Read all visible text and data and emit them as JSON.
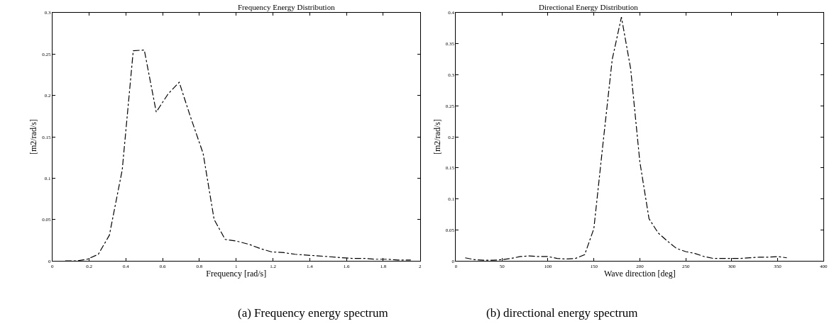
{
  "chart_data": [
    {
      "type": "line",
      "title": "Frequency Energy Distribution",
      "xlabel": "Frequency [rad/s]",
      "ylabel": "[m2/rad/s]",
      "annotations": [
        "(a) Frequency energy spectrum"
      ],
      "x": [
        0.07,
        0.13,
        0.19,
        0.25,
        0.31,
        0.38,
        0.44,
        0.5,
        0.565,
        0.63,
        0.69,
        0.75,
        0.82,
        0.88,
        0.94,
        1.0,
        1.07,
        1.13,
        1.19,
        1.26,
        1.32,
        1.38,
        1.45,
        1.51,
        1.57,
        1.63,
        1.7,
        1.76,
        1.82,
        1.88,
        1.95
      ],
      "series": [
        {
          "color": "#000000",
          "values": [
            0,
            0,
            0.002,
            0.008,
            0.031,
            0.11,
            0.254,
            0.255,
            0.18,
            0.202,
            0.216,
            0.175,
            0.13,
            0.05,
            0.026,
            0.024,
            0.02,
            0.015,
            0.011,
            0.01,
            0.008,
            0.007,
            0.006,
            0.005,
            0.004,
            0.003,
            0.003,
            0.002,
            0.002,
            0.001,
            0.001
          ]
        }
      ],
      "xlim": [
        0,
        2
      ],
      "xticks": [
        0,
        0.2,
        0.4,
        0.6,
        0.8,
        1,
        1.2,
        1.4,
        1.6,
        1.8,
        2
      ],
      "ylim": [
        0,
        0.3
      ],
      "yticks": [
        0,
        0.05,
        0.1,
        0.15,
        0.2,
        0.25,
        0.3
      ],
      "line_style": "dashed"
    },
    {
      "type": "line",
      "title": "Directional Energy Distribution",
      "xlabel": "Wave direction [deg]",
      "ylabel": "[m2/rad/s]",
      "annotations": [
        "(b) directional energy spectrum"
      ],
      "x": [
        10,
        20,
        30,
        40,
        50,
        60,
        70,
        80,
        90,
        100,
        110,
        120,
        130,
        140,
        150,
        160,
        170,
        180,
        190,
        200,
        210,
        220,
        230,
        240,
        250,
        260,
        270,
        280,
        290,
        300,
        310,
        320,
        330,
        340,
        350,
        360
      ],
      "series": [
        {
          "color": "#000000",
          "values": [
            0.005,
            0.002,
            0.001,
            0.001,
            0.002,
            0.004,
            0.007,
            0.008,
            0.007,
            0.007,
            0.004,
            0.003,
            0.004,
            0.01,
            0.052,
            0.19,
            0.325,
            0.393,
            0.31,
            0.16,
            0.068,
            0.045,
            0.032,
            0.02,
            0.015,
            0.012,
            0.007,
            0.004,
            0.004,
            0.004,
            0.004,
            0.005,
            0.006,
            0.006,
            0.007,
            0.005
          ]
        }
      ],
      "xlim": [
        0,
        400
      ],
      "xticks": [
        0,
        50,
        100,
        150,
        200,
        250,
        300,
        350,
        400
      ],
      "ylim": [
        0,
        0.4
      ],
      "yticks": [
        0,
        0.05,
        0.1,
        0.15,
        0.2,
        0.25,
        0.3,
        0.35,
        0.4
      ],
      "line_style": "dashed"
    }
  ]
}
